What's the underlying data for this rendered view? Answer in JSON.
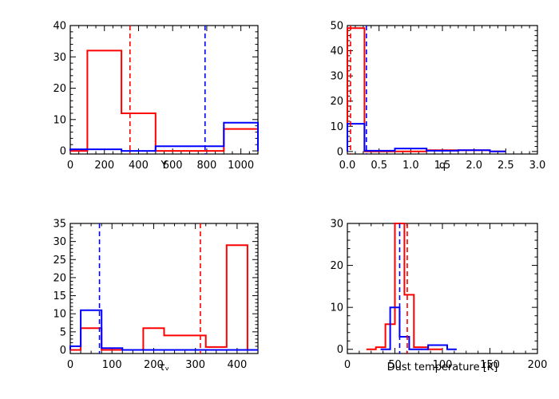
{
  "chart_data": [
    {
      "type": "histogram",
      "xlabel": "Y",
      "xlim": [
        0,
        1100
      ],
      "ylim": [
        -1,
        40
      ],
      "xticks": [
        0,
        200,
        400,
        600,
        800,
        1000
      ],
      "yticks": [
        0,
        10,
        20,
        30,
        40
      ],
      "series": [
        {
          "color": "#ff0000",
          "edges": [
            0,
            100,
            300,
            500,
            900,
            1100
          ],
          "values": [
            0,
            32,
            12,
            0,
            7
          ]
        },
        {
          "color": "#0000ff",
          "edges": [
            0,
            300,
            500,
            900,
            1100
          ],
          "values": [
            0.5,
            0,
            1.5,
            9
          ]
        }
      ],
      "vlines": [
        {
          "x": 350,
          "color": "#ff0000"
        },
        {
          "x": 790,
          "color": "#0000ff"
        }
      ]
    },
    {
      "type": "histogram",
      "xlabel": "q",
      "xlim": [
        0,
        3.0
      ],
      "ylim": [
        -1,
        50
      ],
      "xticks": [
        0.0,
        0.5,
        1.0,
        1.5,
        2.0,
        2.5,
        3.0
      ],
      "yticks": [
        0,
        10,
        20,
        30,
        40,
        50
      ],
      "series": [
        {
          "color": "#ff0000",
          "edges": [
            0,
            0.27,
            1.25,
            2.25,
            2.5
          ],
          "values": [
            49,
            0,
            0.5,
            0
          ]
        },
        {
          "color": "#0000ff",
          "edges": [
            0,
            0.27,
            0.75,
            1.25,
            1.75,
            2.25,
            2.5
          ],
          "values": [
            11,
            0.3,
            1.2,
            0.3,
            0.5,
            0
          ]
        }
      ],
      "vlines": [
        {
          "x": 0.05,
          "color": "#ff0000"
        },
        {
          "x": 0.3,
          "color": "#0000ff"
        }
      ]
    },
    {
      "type": "histogram",
      "xlabel": "τᵥ",
      "xlim": [
        0,
        450
      ],
      "ylim": [
        -1,
        35
      ],
      "xticks": [
        0,
        100,
        200,
        300,
        400
      ],
      "yticks": [
        0,
        5,
        10,
        15,
        20,
        25,
        30,
        35
      ],
      "series": [
        {
          "color": "#ff0000",
          "edges": [
            0,
            25,
            75,
            125,
            175,
            225,
            325,
            375,
            425,
            450
          ],
          "values": [
            0,
            6,
            0,
            0,
            6,
            4,
            0.8,
            29,
            0
          ]
        },
        {
          "color": "#0000ff",
          "edges": [
            0,
            25,
            75,
            125,
            450
          ],
          "values": [
            1,
            11,
            0.5,
            0
          ]
        }
      ],
      "vlines": [
        {
          "x": 70,
          "color": "#0000ff"
        },
        {
          "x": 312,
          "color": "#ff0000"
        }
      ]
    },
    {
      "type": "histogram",
      "xlabel": "Dust temperature [K]",
      "xlim": [
        0,
        200
      ],
      "ylim": [
        -1,
        30
      ],
      "xticks": [
        0,
        50,
        100,
        150,
        200
      ],
      "yticks": [
        0,
        10,
        20,
        30
      ],
      "series": [
        {
          "color": "#ff0000",
          "edges": [
            20,
            30,
            40,
            50,
            60,
            70,
            85,
            100
          ],
          "values": [
            0,
            0.5,
            6,
            30,
            13,
            0.5,
            0
          ]
        },
        {
          "color": "#0000ff",
          "edges": [
            35,
            45,
            55,
            65,
            85,
            105,
            115
          ],
          "values": [
            0,
            10,
            3,
            0,
            1,
            0
          ]
        }
      ],
      "vlines": [
        {
          "x": 55,
          "color": "#0000ff"
        },
        {
          "x": 63,
          "color": "#ff0000"
        }
      ]
    }
  ]
}
